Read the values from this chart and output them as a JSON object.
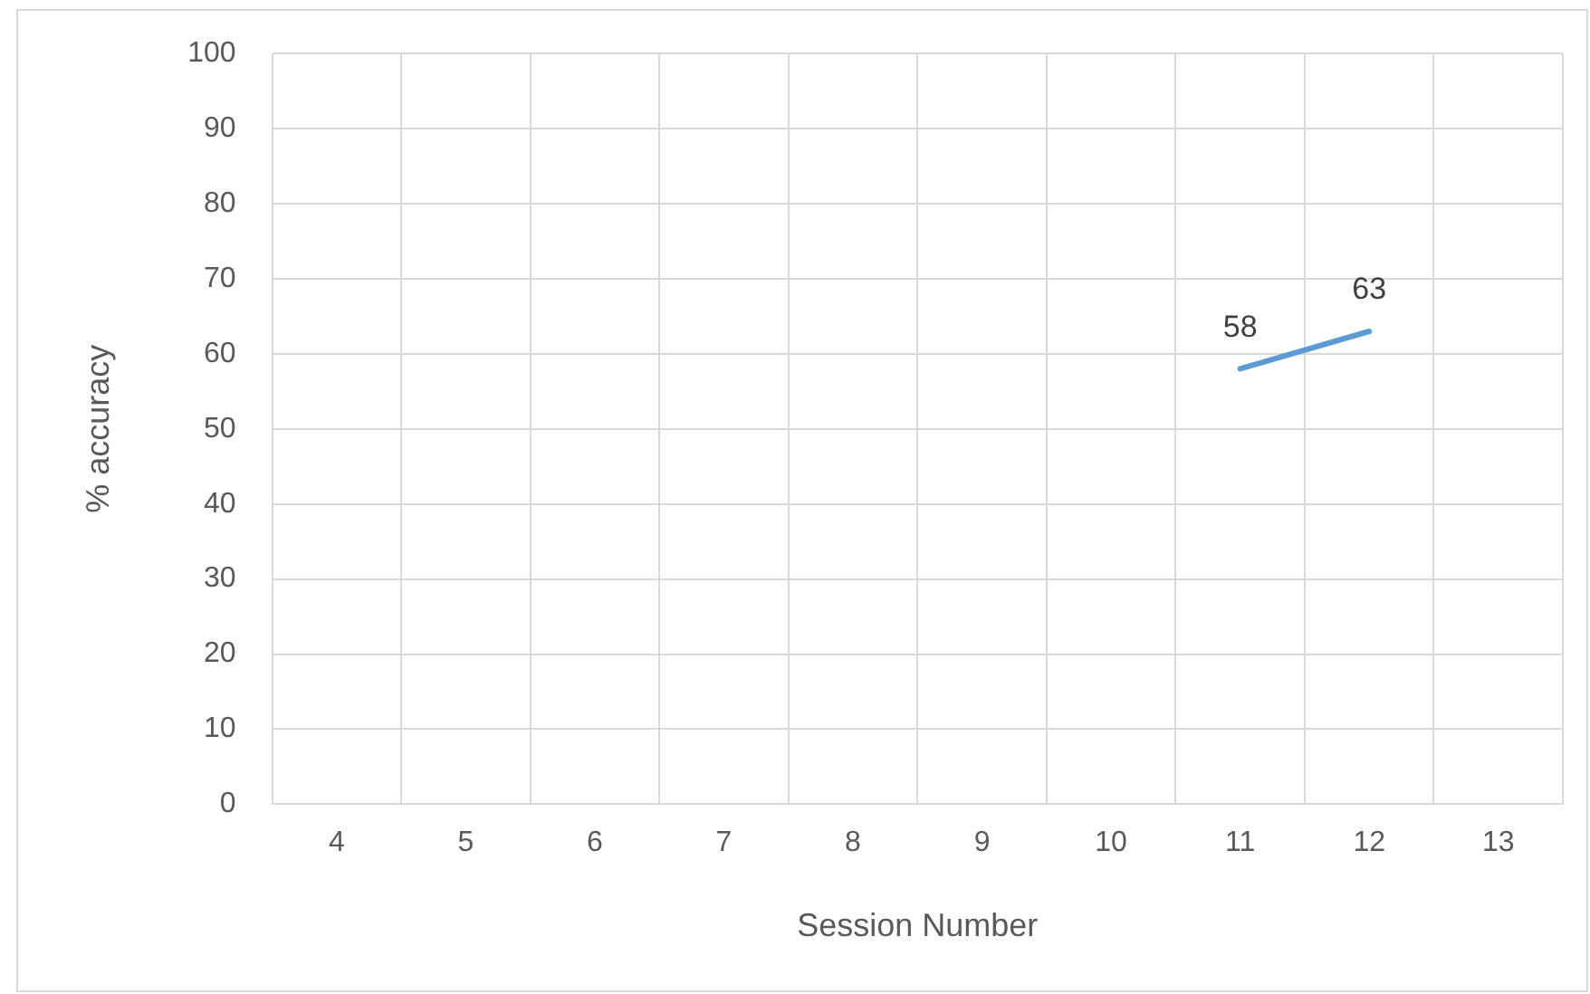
{
  "chart_data": {
    "type": "line",
    "xlabel": "Session Number",
    "ylabel": "% accuracy",
    "categories": [
      "4",
      "5",
      "6",
      "7",
      "8",
      "9",
      "10",
      "11",
      "12",
      "13"
    ],
    "series": [
      {
        "color": "#5b9bd5",
        "values": [
          null,
          null,
          null,
          null,
          null,
          null,
          null,
          58,
          63,
          null
        ]
      }
    ],
    "ylim": [
      0,
      100
    ],
    "yticks": [
      0,
      10,
      20,
      30,
      40,
      50,
      60,
      70,
      80,
      90,
      100
    ],
    "grid": true,
    "data_labels": true,
    "marker": "none",
    "line_style": "solid",
    "legend": false
  }
}
